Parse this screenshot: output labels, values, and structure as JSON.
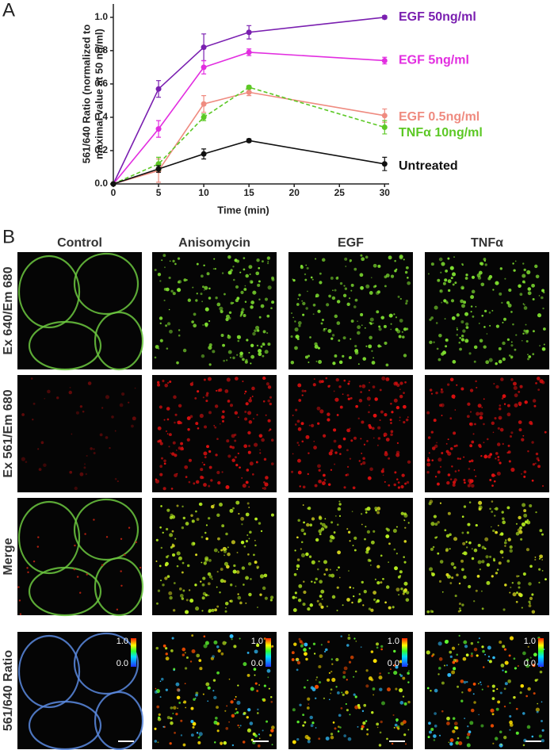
{
  "panels": {
    "a": "A",
    "b": "B"
  },
  "chart_data": {
    "type": "line",
    "ylabel": [
      "561/640 Ratio (normalized to",
      "maximal value at 50 ng/ml)"
    ],
    "xlabel": "Time (min)",
    "x": [
      0,
      5,
      10,
      15,
      30
    ],
    "xlim": [
      0,
      30.5
    ],
    "xticks": [
      0,
      5,
      10,
      15,
      20,
      25,
      30
    ],
    "ylim": [
      0,
      1.08
    ],
    "yticks": [
      {
        "value": 0,
        "label": "0.0"
      },
      0.2,
      0.4,
      0.6,
      0.8,
      {
        "value": 1,
        "label": "1.0"
      }
    ],
    "series": [
      {
        "name": "EGF 50ng/ml",
        "color": "#7a1fb0",
        "line_style": "solid",
        "values": [
          0,
          0.57,
          0.82,
          0.91,
          1.0
        ],
        "errors": [
          0,
          0.05,
          0.08,
          0.04,
          0.01
        ]
      },
      {
        "name": "EGF 5ng/ml",
        "color": "#e22ee0",
        "line_style": "solid",
        "values": [
          0,
          0.33,
          0.7,
          0.79,
          0.74
        ],
        "errors": [
          0,
          0.05,
          0.04,
          0.02,
          0.02
        ]
      },
      {
        "name": "EGF 0.5ng/ml",
        "color": "#ef8b80",
        "line_style": "solid",
        "values": [
          0,
          0.08,
          0.48,
          0.55,
          0.41
        ],
        "errors": [
          0,
          0.07,
          0.05,
          0.02,
          0.04
        ]
      },
      {
        "name": "TNFα 10ng/ml",
        "color": "#5cc825",
        "line_style": "dashed",
        "values": [
          0,
          0.12,
          0.4,
          0.58,
          0.34
        ],
        "errors": [
          0,
          0.04,
          0.02,
          0.01,
          0.04
        ]
      },
      {
        "name": "Untreated",
        "color": "#111111",
        "line_style": "solid",
        "values": [
          0,
          0.09,
          0.18,
          0.26,
          0.12
        ],
        "errors": [
          0,
          0.02,
          0.03,
          0.01,
          0.04
        ]
      }
    ]
  },
  "images": {
    "columns": [
      "Control",
      "Anisomycin",
      "EGF",
      "TNFα"
    ],
    "rows": [
      "Ex 640/Em 680",
      "Ex 561/Em 680",
      "Merge",
      "561/640 Ratio"
    ],
    "colorbar": {
      "max": "1.0",
      "min": "0.0"
    }
  }
}
